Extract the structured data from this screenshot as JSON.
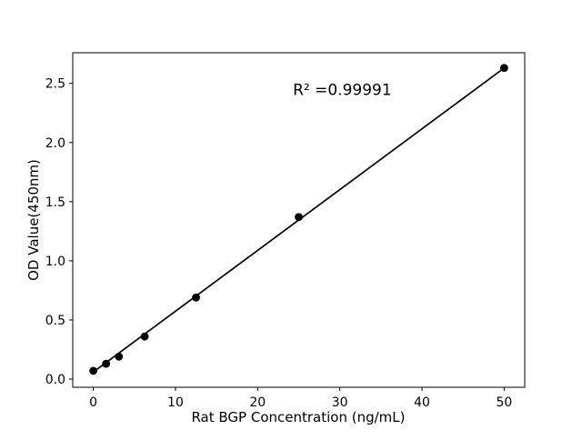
{
  "page": {
    "background_color": "#ffffff"
  },
  "chart_data": {
    "type": "scatter",
    "title": "",
    "xlabel": "Rat BGP Concentration (ng/mL)",
    "ylabel": "OD Value(450nm)",
    "x": [
      0,
      1.56,
      3.12,
      6.25,
      12.5,
      25,
      50
    ],
    "y": [
      0.07,
      0.13,
      0.19,
      0.36,
      0.69,
      1.37,
      2.63
    ],
    "fit_line": {
      "x": [
        0,
        50
      ],
      "y": [
        0.06,
        2.63
      ]
    },
    "annotation": {
      "text": "R² =0.99991",
      "x": 30.3,
      "y": 2.4
    },
    "xlim": [
      -2.5,
      52.5
    ],
    "ylim": [
      -0.069,
      2.759
    ],
    "xticks": [
      "0",
      "10",
      "20",
      "30",
      "40",
      "50"
    ],
    "yticks": [
      "0.0",
      "0.5",
      "1.0",
      "1.5",
      "2.0",
      "2.5"
    ],
    "grid": false,
    "legend": null,
    "marker_color": "#000000",
    "line_color": "#000000",
    "text_color": "#000000"
  }
}
